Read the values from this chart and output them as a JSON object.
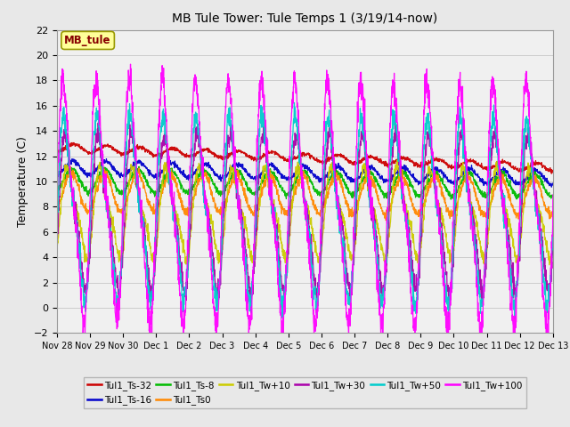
{
  "title": "MB Tule Tower: Tule Temps 1 (3/19/14-now)",
  "ylabel": "Temperature (C)",
  "ylim": [
    -2,
    22
  ],
  "yticks": [
    -2,
    0,
    2,
    4,
    6,
    8,
    10,
    12,
    14,
    16,
    18,
    20,
    22
  ],
  "n_days": 15,
  "xtick_labels": [
    "Nov 28",
    "Nov 29",
    "Nov 30",
    "Dec 1",
    "Dec 2",
    "Dec 3",
    "Dec 4",
    "Dec 5",
    "Dec 6",
    "Dec 7",
    "Dec 8",
    "Dec 9",
    "Dec 10",
    "Dec 11",
    "Dec 12",
    "Dec 13"
  ],
  "series": [
    {
      "name": "Tul1_Ts-32",
      "color": "#cc0000",
      "base_s": 12.7,
      "base_e": 11.1,
      "amp": 0.3,
      "phase": 0.25,
      "noise": 0.08
    },
    {
      "name": "Tul1_Ts-16",
      "color": "#0000cc",
      "base_s": 11.1,
      "base_e": 10.3,
      "amp": 0.55,
      "phase": 0.22,
      "noise": 0.1
    },
    {
      "name": "Tul1_Ts-8",
      "color": "#00bb00",
      "base_s": 10.1,
      "base_e": 9.7,
      "amp": 0.9,
      "phase": 0.2,
      "noise": 0.12
    },
    {
      "name": "Tul1_Ts0",
      "color": "#ff8800",
      "base_s": 9.2,
      "base_e": 8.8,
      "amp": 1.5,
      "phase": 0.18,
      "noise": 0.18
    },
    {
      "name": "Tul1_Tw+10",
      "color": "#cccc00",
      "base_s": 7.5,
      "base_e": 7.5,
      "amp": 3.2,
      "phase": 0.1,
      "noise": 0.25
    },
    {
      "name": "Tul1_Tw+30",
      "color": "#aa00aa",
      "base_s": 7.5,
      "base_e": 7.5,
      "amp": 5.5,
      "phase": 0.05,
      "noise": 0.4
    },
    {
      "name": "Tul1_Tw+50",
      "color": "#00cccc",
      "base_s": 8.0,
      "base_e": 7.5,
      "amp": 6.5,
      "phase": 0.02,
      "noise": 0.5
    },
    {
      "name": "Tul1_Tw+100",
      "color": "#ff00ff",
      "base_s": 8.5,
      "base_e": 8.0,
      "amp": 8.5,
      "phase": 0.0,
      "noise": 0.6
    }
  ],
  "bg_color": "#e8e8e8",
  "plot_bg": "#f0f0f0",
  "grid_color": "#cccccc",
  "legend_cols": 6
}
